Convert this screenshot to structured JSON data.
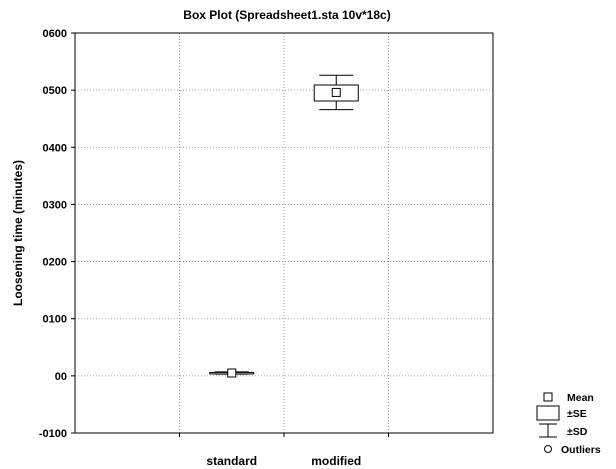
{
  "chart_data": {
    "type": "box",
    "title": "Box Plot (Spreadsheet1.sta 10v*18c)",
    "xlabel": "",
    "ylabel": "Loosening time (minutes)",
    "ylim": [
      -0.01,
      0.06
    ],
    "yticks": [
      -0.01,
      0,
      0.01,
      0.02,
      0.03,
      0.04,
      0.05,
      0.06
    ],
    "ytick_labels": [
      "-0100",
      "00",
      "0100",
      "0200",
      "0300",
      "0400",
      "0500",
      "0600"
    ],
    "categories": [
      "standard",
      "modified"
    ],
    "grid": true,
    "legend_position": "bottom-right",
    "series": [
      {
        "category": "standard",
        "mean": 0.0005,
        "se_low": 0.0004,
        "se_high": 0.0006,
        "sd_low": 0.0003,
        "sd_high": 0.0007
      },
      {
        "category": "modified",
        "mean": 0.0496,
        "se_low": 0.0481,
        "se_high": 0.0509,
        "sd_low": 0.0466,
        "sd_high": 0.0526
      }
    ],
    "legend": [
      {
        "symbol": "square",
        "label": "Mean"
      },
      {
        "symbol": "box",
        "label": "±SE"
      },
      {
        "symbol": "whisker",
        "label": "±SD"
      },
      {
        "symbol": "circle",
        "label": "Outliers"
      }
    ]
  }
}
